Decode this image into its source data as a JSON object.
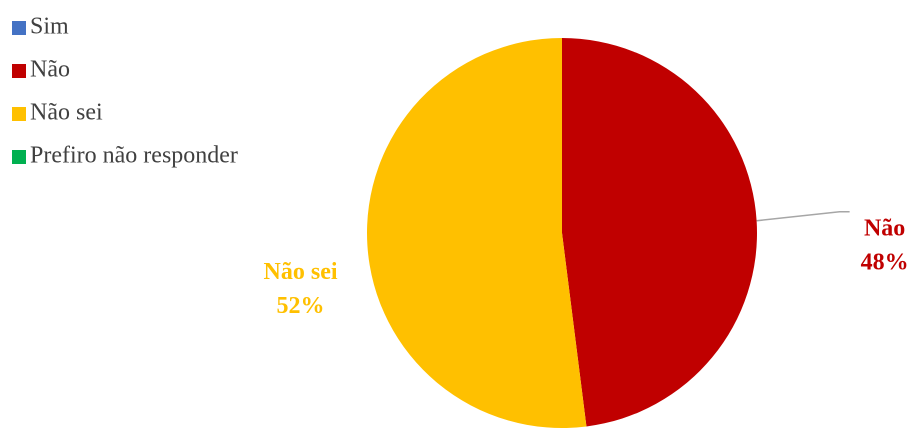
{
  "chart_data": {
    "type": "pie",
    "categories": [
      "Sim",
      "Não",
      "Não sei",
      "Prefiro não responder"
    ],
    "values": [
      0,
      48,
      52,
      0
    ],
    "value_labels": [
      null,
      "48%",
      "52%",
      null
    ],
    "colors": [
      "#4472c4",
      "#c00000",
      "#ffc000",
      "#00b050"
    ],
    "legend": "top-left"
  }
}
